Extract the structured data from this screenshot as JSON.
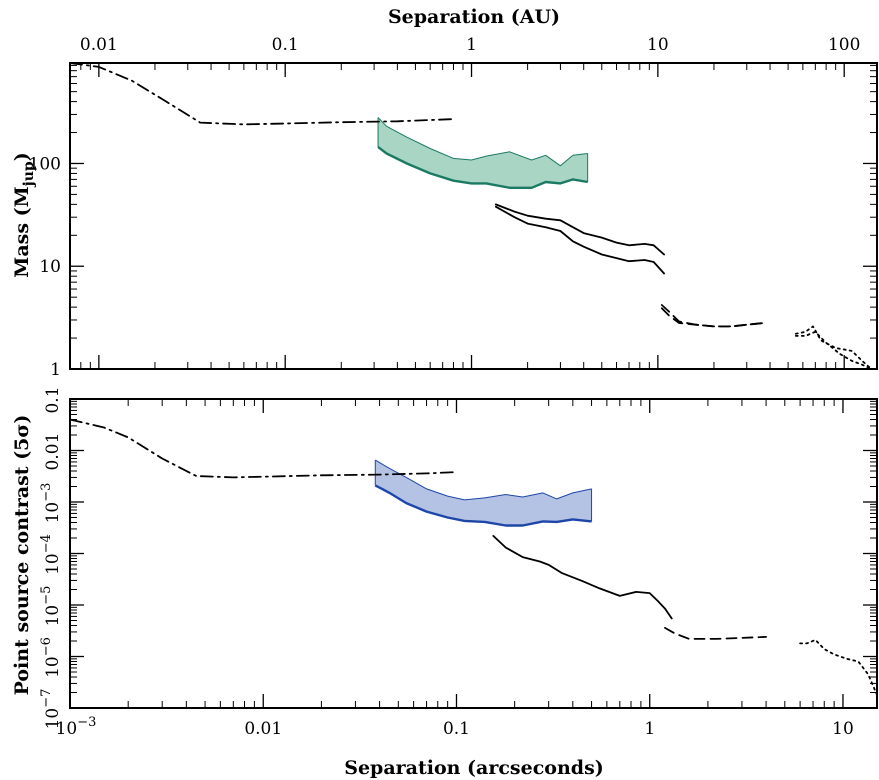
{
  "chart_data": [
    {
      "panel": "top",
      "type": "line",
      "xlabel_top": "Separation (AU)",
      "xscale": "log",
      "xlim_au": [
        0.007,
        150
      ],
      "xticks_au": [
        "0.01",
        "0.1",
        "1",
        "10",
        "100"
      ],
      "ylabel": "Mass (M",
      "ylabel_sub": "jup",
      "ylabel_end": ")",
      "yscale": "log",
      "ylim": [
        1,
        950
      ],
      "yticks": [
        "1",
        "10",
        "100"
      ],
      "band": {
        "x": [
          0.315,
          0.35,
          0.45,
          0.6,
          0.8,
          1.0,
          1.2,
          1.6,
          2.1,
          2.5,
          3.0,
          3.5,
          4.2
        ],
        "upper": [
          280,
          230,
          180,
          140,
          112,
          108,
          118,
          130,
          108,
          120,
          95,
          120,
          125
        ],
        "lower": [
          145,
          125,
          100,
          80,
          68,
          64,
          64,
          58,
          58,
          66,
          64,
          70,
          66
        ],
        "color": "#1b7a63",
        "fill": "#a9d5c4"
      },
      "series": [
        {
          "style": "dashdot",
          "x": [
            0.007,
            0.01,
            0.015,
            0.022,
            0.035,
            0.06,
            0.1,
            0.2,
            0.4,
            0.8
          ],
          "y": [
            950,
            870,
            640,
            420,
            250,
            240,
            245,
            252,
            257,
            270
          ]
        },
        {
          "style": "solid",
          "x": [
            1.35,
            1.7,
            2.0,
            2.5,
            3.0,
            3.5,
            4.0,
            5.0,
            6.0,
            7.0,
            8.5,
            9.5,
            10.8
          ],
          "y": [
            40,
            34,
            31,
            29,
            28,
            24,
            21,
            19,
            17,
            16,
            16.5,
            16,
            13
          ]
        },
        {
          "style": "solid",
          "x": [
            1.35,
            1.7,
            2.0,
            2.5,
            3.0,
            3.5,
            4.0,
            5.0,
            6.0,
            7.0,
            8.5,
            9.5,
            10.8
          ],
          "y": [
            38,
            30,
            26,
            24,
            22,
            17.5,
            15.5,
            13,
            12,
            11.2,
            11.5,
            11,
            8.5
          ]
        },
        {
          "style": "dashed",
          "x": [
            10.5,
            11.5,
            13,
            16,
            20,
            25,
            30,
            37
          ],
          "y": [
            4.2,
            3.6,
            2.9,
            2.7,
            2.6,
            2.6,
            2.7,
            2.8
          ]
        },
        {
          "style": "dashed",
          "x": [
            10.5,
            11.5,
            13,
            16,
            20,
            25,
            30,
            37
          ],
          "y": [
            3.9,
            3.3,
            2.8,
            2.7,
            2.6,
            2.6,
            2.7,
            2.8
          ]
        },
        {
          "style": "dotted",
          "x": [
            55,
            62,
            68,
            75,
            90,
            110,
            125,
            140
          ],
          "y": [
            2.2,
            2.3,
            2.6,
            1.9,
            1.6,
            1.5,
            1.2,
            1.0
          ]
        },
        {
          "style": "dotted",
          "x": [
            55,
            62,
            70,
            80,
            95,
            110,
            125,
            140
          ],
          "y": [
            2.1,
            2.1,
            2.3,
            1.8,
            1.4,
            1.2,
            1.1,
            1.0
          ]
        }
      ]
    },
    {
      "panel": "bottom",
      "type": "line",
      "xlabel": "Separation (arcseconds)",
      "xscale": "log",
      "xlim": [
        0.001,
        15
      ],
      "xticks": [
        "10",
        "0.01",
        "0.1",
        "1",
        "10"
      ],
      "xtick_first_base": "10",
      "xtick_first_exp": "−3",
      "ylabel": "Point source contrast (5σ)",
      "yscale": "log",
      "ylim": [
        1e-07,
        0.1
      ],
      "yticks": [
        {
          "base": "10",
          "exp": "−7"
        },
        {
          "base": "10",
          "exp": "−6"
        },
        {
          "base": "10",
          "exp": "−5"
        },
        {
          "base": "10",
          "exp": "−4"
        },
        {
          "base": "10",
          "exp": "−3"
        },
        {
          "base": "0.01",
          "exp": ""
        },
        {
          "base": "0.1",
          "exp": ""
        }
      ],
      "band": {
        "x": [
          0.038,
          0.045,
          0.055,
          0.07,
          0.09,
          0.11,
          0.14,
          0.18,
          0.22,
          0.28,
          0.33,
          0.4,
          0.5
        ],
        "upper": [
          0.0065,
          0.0045,
          0.003,
          0.0018,
          0.0013,
          0.0011,
          0.0012,
          0.0014,
          0.00125,
          0.0015,
          0.00115,
          0.0015,
          0.0018
        ],
        "lower": [
          0.0021,
          0.0015,
          0.00095,
          0.00065,
          0.0005,
          0.00043,
          0.00041,
          0.00035,
          0.00035,
          0.00042,
          0.00041,
          0.00046,
          0.00042
        ],
        "color": "#1d46a8",
        "fill": "#b4c3e3"
      },
      "series": [
        {
          "style": "dashdot",
          "x": [
            0.001,
            0.0015,
            0.002,
            0.003,
            0.0045,
            0.007,
            0.01,
            0.02,
            0.04,
            0.07,
            0.1
          ],
          "y": [
            0.04,
            0.028,
            0.018,
            0.007,
            0.0032,
            0.003,
            0.0031,
            0.0033,
            0.0034,
            0.0036,
            0.0038
          ]
        },
        {
          "style": "solid",
          "x": [
            0.155,
            0.18,
            0.22,
            0.27,
            0.3,
            0.35,
            0.45,
            0.55,
            0.7,
            0.85,
            1.0,
            1.1,
            1.2,
            1.3
          ],
          "y": [
            0.00022,
            0.00013,
            8.5e-05,
            7e-05,
            6e-05,
            4.2e-05,
            2.9e-05,
            2.1e-05,
            1.5e-05,
            1.8e-05,
            1.7e-05,
            1.2e-05,
            8.5e-06,
            5.5e-06
          ]
        },
        {
          "style": "dashed",
          "x": [
            1.2,
            1.35,
            1.5,
            1.6,
            1.8,
            2.2,
            3.0,
            4.0
          ],
          "y": [
            3.6e-06,
            2.8e-06,
            2.4e-06,
            2.2e-06,
            2.2e-06,
            2.2e-06,
            2.3e-06,
            2.4e-06
          ]
        },
        {
          "style": "dotted",
          "x": [
            6.0,
            6.5,
            7.2,
            8.0,
            9.0,
            10.5,
            12.0,
            13.5,
            15.0
          ],
          "y": [
            1.8e-06,
            1.8e-06,
            2.1e-06,
            1.4e-06,
            1.1e-06,
            9e-07,
            8e-07,
            4.5e-07,
            1.8e-07
          ]
        }
      ]
    }
  ]
}
